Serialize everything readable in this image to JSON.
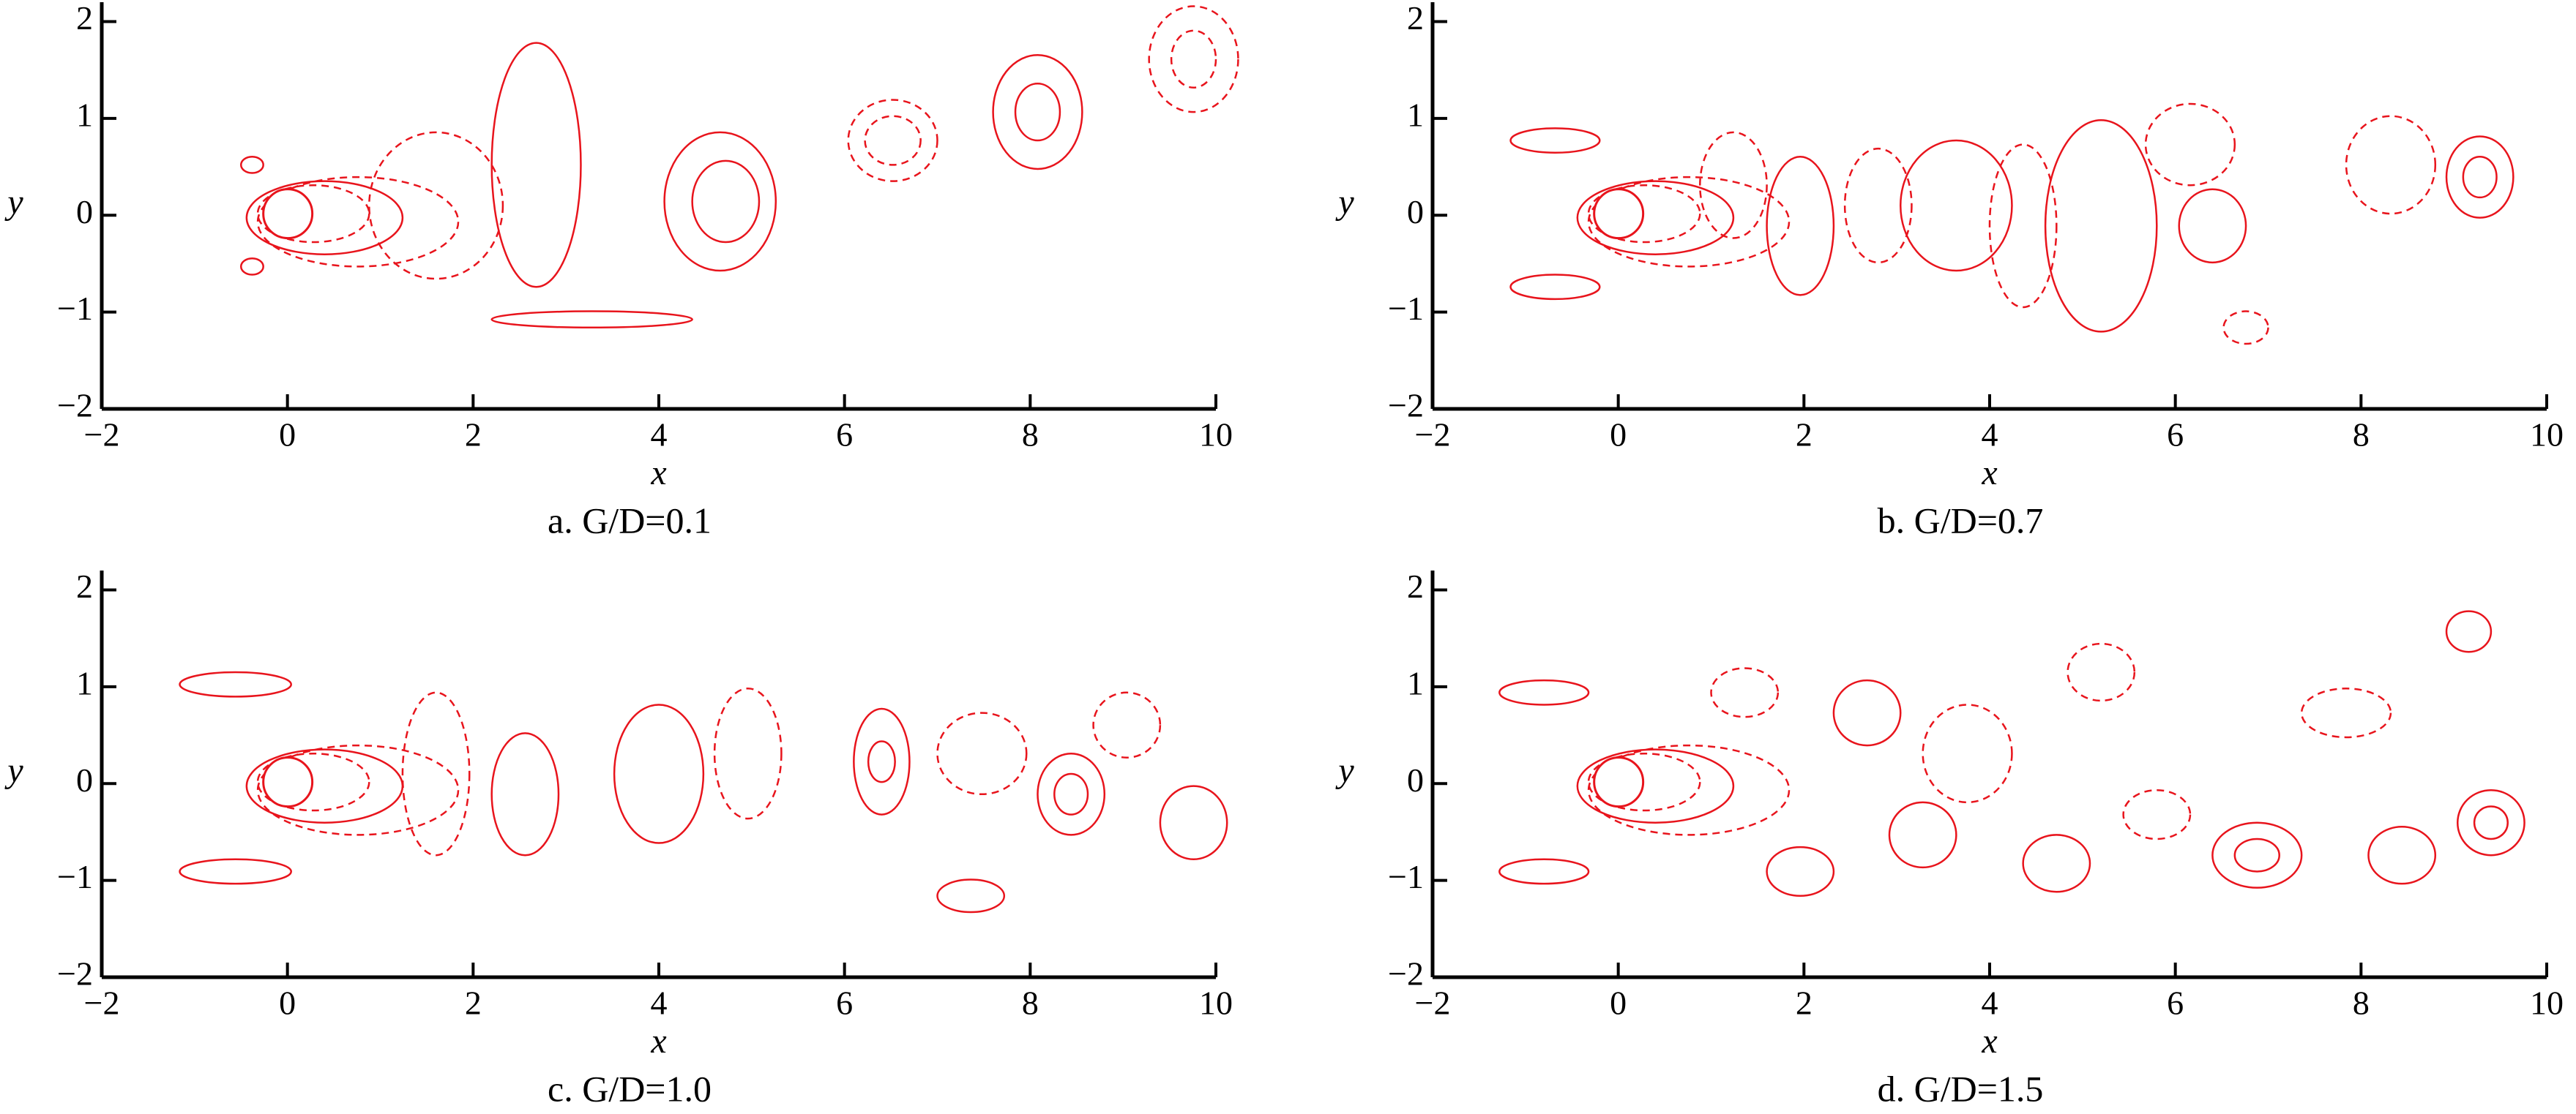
{
  "chart_data": [
    {
      "type": "contour",
      "caption": "a. G/D=0.1",
      "x_label": "x",
      "y_label": "y",
      "xlim": [
        -2,
        10
      ],
      "ylim": [
        -2,
        2.2
      ],
      "xticks": [
        {
          "value": -2,
          "label": "−2"
        },
        0,
        2,
        4,
        6,
        8,
        10
      ],
      "yticks": [
        {
          "value": -2,
          "label": "−2"
        },
        {
          "value": -1,
          "label": "−1"
        },
        0,
        1,
        2
      ],
      "color": "#e8141c"
    },
    {
      "type": "contour",
      "caption": "b. G/D=0.7",
      "x_label": "x",
      "y_label": "y",
      "xlim": [
        -2,
        10
      ],
      "ylim": [
        -2,
        2.2
      ],
      "xticks": [
        {
          "value": -2,
          "label": "−2"
        },
        0,
        2,
        4,
        6,
        8,
        10
      ],
      "yticks": [
        {
          "value": -2,
          "label": "−2"
        },
        {
          "value": -1,
          "label": "−1"
        },
        0,
        1,
        2
      ],
      "color": "#e8141c"
    },
    {
      "type": "contour",
      "caption": "c. G/D=1.0",
      "x_label": "x",
      "y_label": "y",
      "xlim": [
        -2,
        10
      ],
      "ylim": [
        -2,
        2.2
      ],
      "xticks": [
        {
          "value": -2,
          "label": "−2"
        },
        0,
        2,
        4,
        6,
        8,
        10
      ],
      "yticks": [
        {
          "value": -2,
          "label": "−2"
        },
        {
          "value": -1,
          "label": "−1"
        },
        0,
        1,
        2
      ],
      "color": "#e8141c"
    },
    {
      "type": "contour",
      "caption": "d. G/D=1.5",
      "x_label": "x",
      "y_label": "y",
      "xlim": [
        -2,
        10
      ],
      "ylim": [
        -2,
        2.2
      ],
      "xticks": [
        {
          "value": -2,
          "label": "−2"
        },
        0,
        2,
        4,
        6,
        8,
        10
      ],
      "yticks": [
        {
          "value": -2,
          "label": "−2"
        },
        {
          "value": -1,
          "label": "−1"
        },
        0,
        1,
        2
      ],
      "color": "#e8141c"
    }
  ]
}
